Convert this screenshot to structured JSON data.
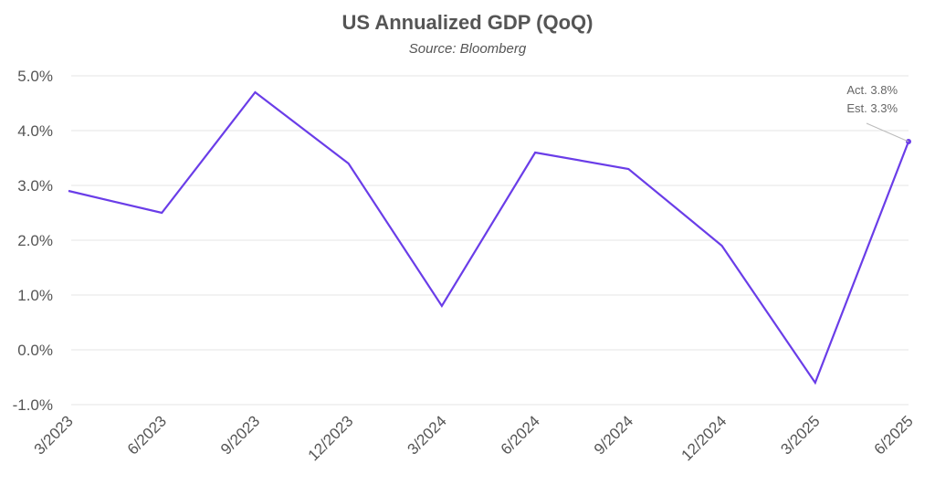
{
  "chart_data": {
    "type": "line",
    "title": "US Annualized GDP (QoQ)",
    "subtitle": "Source: Bloomberg",
    "xlabel": "",
    "ylabel": "",
    "categories": [
      "3/2023",
      "6/2023",
      "9/2023",
      "12/2023",
      "3/2024",
      "6/2024",
      "9/2024",
      "12/2024",
      "3/2025",
      "6/2025"
    ],
    "series": [
      {
        "name": "US Annualized GDP (QoQ)",
        "values": [
          2.9,
          2.5,
          4.7,
          3.4,
          0.8,
          3.6,
          3.3,
          1.9,
          -0.6,
          3.8
        ],
        "color": "#6a3de8"
      }
    ],
    "ylim": [
      -1,
      5
    ],
    "yticks": [
      5,
      4,
      3,
      2,
      1,
      0,
      -1
    ],
    "ytick_labels": [
      "5.0%",
      "4.0%",
      "3.0%",
      "2.0%",
      "1.0%",
      "0.0%",
      "-1.0%"
    ],
    "grid": true,
    "legend": "none",
    "annotations": [
      {
        "category": "6/2025",
        "lines": [
          "Act. 3.8%",
          "Est. 3.3%"
        ]
      }
    ]
  }
}
